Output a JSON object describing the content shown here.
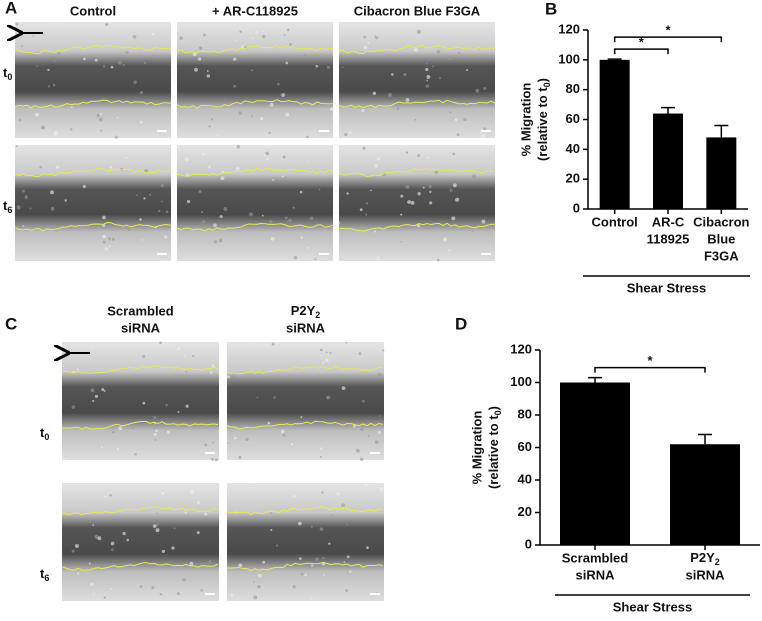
{
  "panels": {
    "A": {
      "label": "A",
      "columns": [
        "Control",
        "+ AR-C118925",
        "Cibacron Blue F3GA"
      ],
      "rows": [
        {
          "text": "t",
          "sub": "0"
        },
        {
          "text": "t",
          "sub": "6"
        }
      ]
    },
    "C": {
      "label": "C",
      "columns": [
        [
          "Scrambled",
          "siRNA"
        ],
        [
          {
            "text": "P2Y",
            "sub": "2"
          },
          "siRNA"
        ]
      ],
      "rows": [
        {
          "text": "t",
          "sub": "0"
        },
        {
          "text": "t",
          "sub": "6"
        }
      ]
    }
  },
  "chart_data": [
    {
      "type": "bar",
      "panel_label": "B",
      "ylabel": {
        "line1": "% Migration",
        "line2": "(relative to t",
        "sub": "0",
        "end": ")"
      },
      "categories": [
        [
          "Control"
        ],
        [
          "AR-C",
          "118925"
        ],
        [
          "Cibacron",
          "Blue",
          "F3GA"
        ]
      ],
      "values": [
        100,
        64,
        48
      ],
      "errors": [
        0.5,
        4,
        8
      ],
      "color": "#000000",
      "ylim": [
        0,
        120
      ],
      "yticks": [
        0,
        20,
        40,
        60,
        80,
        100,
        120
      ],
      "significance": [
        {
          "from": 0,
          "to": 1,
          "label": "*"
        },
        {
          "from": 0,
          "to": 2,
          "label": "*"
        }
      ],
      "group_label": "Shear Stress"
    },
    {
      "type": "bar",
      "panel_label": "D",
      "ylabel": {
        "line1": "% Migration",
        "line2": "(relative to t",
        "sub": "0",
        "end": ")"
      },
      "categories": [
        [
          "Scrambled",
          "siRNA"
        ],
        [
          {
            "text": "P2Y",
            "sub": "2"
          },
          "siRNA"
        ]
      ],
      "values": [
        100,
        62
      ],
      "errors": [
        3,
        6
      ],
      "color": "#000000",
      "ylim": [
        0,
        120
      ],
      "yticks": [
        0,
        20,
        40,
        60,
        80,
        100,
        120
      ],
      "significance": [
        {
          "from": 0,
          "to": 1,
          "label": "*"
        }
      ],
      "group_label": "Shear Stress"
    }
  ]
}
